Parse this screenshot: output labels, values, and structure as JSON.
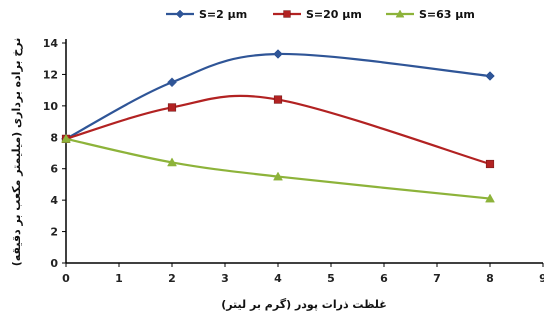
{
  "chart_data": {
    "type": "line",
    "xlabel": "غلظت ذرات پودر (گرم بر لیتر)",
    "ylabel": "نرخ براده برداری (میلیمتر مکعب بر دقیقه)",
    "xlim": [
      0,
      9
    ],
    "ylim": [
      0,
      14
    ],
    "xticks": [
      "0",
      "1",
      "2",
      "3",
      "4",
      "5",
      "6",
      "7",
      "8",
      "9"
    ],
    "yticks": [
      "0",
      "2",
      "4",
      "6",
      "8",
      "10",
      "12",
      "14"
    ],
    "grid": false,
    "smooth": true,
    "legend_position": "top",
    "series": [
      {
        "name": "S=2 µm",
        "color": "#2f5597",
        "marker": "diamond",
        "x": [
          0,
          2,
          4,
          8
        ],
        "y": [
          7.9,
          11.5,
          13.3,
          11.9
        ]
      },
      {
        "name": "S=20 µm",
        "color": "#b22222",
        "marker": "square",
        "x": [
          0,
          2,
          4,
          8
        ],
        "y": [
          7.9,
          9.9,
          10.4,
          6.3
        ]
      },
      {
        "name": "S=63 µm",
        "color": "#8db33a",
        "marker": "triangle",
        "x": [
          0,
          2,
          4,
          8
        ],
        "y": [
          7.9,
          6.4,
          5.5,
          4.1
        ]
      }
    ]
  }
}
